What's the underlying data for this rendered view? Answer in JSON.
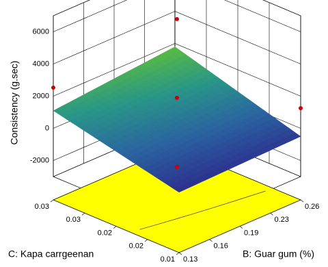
{
  "chart_data": {
    "type": "surface",
    "zlabel": "Consistency (g.sec)",
    "xlabel": "B: Guar gum (%)",
    "ylabel": "C: Kapa carrgeenan",
    "xlim": [
      0.13,
      0.26
    ],
    "xticks": [
      0.13,
      {
        "value": 0.1625,
        "label": "0.16"
      },
      {
        "value": 0.195,
        "label": "0.19"
      },
      {
        "value": 0.2275,
        "label": "0.23"
      },
      0.26
    ],
    "ylim": [
      0.01,
      0.03
    ],
    "yticks": [
      0.01,
      {
        "value": 0.015,
        "label": "0.02"
      },
      0.02,
      {
        "value": 0.025,
        "label": "0.03"
      },
      0.03
    ],
    "zlim": [
      -3000,
      7000
    ],
    "zticks": [
      -2000,
      0,
      2000,
      4000,
      6000
    ],
    "z_corners": [
      [
        -700,
        1100
      ],
      [
        -500,
        1800
      ]
    ],
    "points": {
      "color": "#cc0000",
      "x": [
        0.13,
        0.195,
        0.195,
        0.195,
        0.26
      ],
      "y": [
        0.03,
        0.02,
        0.02,
        0.02,
        0.01
      ],
      "z": [
        2530,
        6790,
        1900,
        -2400,
        1255
      ]
    },
    "floor_color": "#ffff00"
  }
}
